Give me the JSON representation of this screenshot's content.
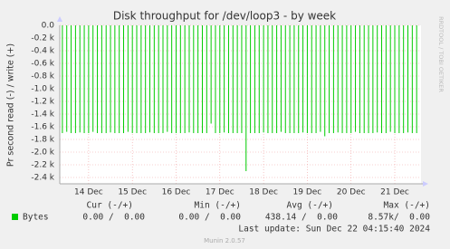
{
  "chart_data": {
    "type": "bar",
    "title": "Disk throughput for /dev/loop3 - by week",
    "y_label": "Pr second read (-) / write (+)",
    "side_label": "RRDTOOL / TOBI OETIKER",
    "x": [
      13.4,
      13.5,
      13.6,
      13.7,
      13.8,
      13.9,
      14.0,
      14.1,
      14.2,
      14.3,
      14.4,
      14.5,
      14.6,
      14.7,
      14.8,
      14.9,
      15.0,
      15.1,
      15.2,
      15.3,
      15.4,
      15.5,
      15.6,
      15.7,
      15.8,
      15.9,
      16.0,
      16.1,
      16.2,
      16.3,
      16.4,
      16.5,
      16.6,
      16.7,
      16.8,
      16.9,
      17.0,
      17.1,
      17.2,
      17.3,
      17.4,
      17.5,
      17.6,
      17.7,
      17.8,
      17.9,
      18.0,
      18.1,
      18.2,
      18.3,
      18.4,
      18.5,
      18.6,
      18.7,
      18.8,
      18.9,
      19.0,
      19.1,
      19.2,
      19.3,
      19.4,
      19.5,
      19.6,
      19.7,
      19.8,
      19.9,
      20.0,
      20.1,
      20.2,
      20.3,
      20.4,
      20.5,
      20.6,
      20.7,
      20.8,
      20.9,
      21.0,
      21.1,
      21.2,
      21.3,
      21.4,
      21.5
    ],
    "series": [
      {
        "name": "Bytes",
        "color": "#00cc00",
        "values": [
          -1700,
          -1680,
          -1700,
          -1700,
          -1690,
          -1700,
          -1700,
          -1680,
          -1700,
          -1700,
          -1700,
          -1690,
          -1700,
          -1700,
          -1700,
          -1680,
          -1700,
          -1700,
          -1700,
          -1700,
          -1690,
          -1700,
          -1700,
          -1700,
          -1680,
          -1700,
          -1700,
          -1700,
          -1700,
          -1690,
          -1700,
          -1700,
          -1700,
          -1700,
          -1550,
          -1700,
          -1700,
          -1690,
          -1700,
          -1700,
          -1700,
          -1700,
          -2300,
          -1700,
          -1700,
          -1700,
          -1690,
          -1700,
          -1700,
          -1700,
          -1680,
          -1700,
          -1700,
          -1700,
          -1700,
          -1690,
          -1700,
          -1700,
          -1700,
          -1680,
          -1750,
          -1700,
          -1700,
          -1690,
          -1700,
          -1700,
          -1700,
          -1680,
          -1700,
          -1700,
          -1700,
          -1700,
          -1690,
          -1700,
          -1700,
          -1680,
          -1700,
          -1700,
          -1700,
          -1690,
          -1700,
          -1700
        ]
      }
    ],
    "xlim": [
      13.34,
      21.6
    ],
    "xticks": [
      {
        "value": 14,
        "label": "14 Dec"
      },
      {
        "value": 15,
        "label": "15 Dec"
      },
      {
        "value": 16,
        "label": "16 Dec"
      },
      {
        "value": 17,
        "label": "17 Dec"
      },
      {
        "value": 18,
        "label": "18 Dec"
      },
      {
        "value": 19,
        "label": "19 Dec"
      },
      {
        "value": 20,
        "label": "20 Dec"
      },
      {
        "value": 21,
        "label": "21 Dec"
      }
    ],
    "ylim": [
      -2500,
      0
    ],
    "yticks": [
      {
        "value": 0,
        "label": "0.0"
      },
      {
        "value": -200,
        "label": "-0.2 k"
      },
      {
        "value": -400,
        "label": "-0.4 k"
      },
      {
        "value": -600,
        "label": "-0.6 k"
      },
      {
        "value": -800,
        "label": "-0.8 k"
      },
      {
        "value": -1000,
        "label": "-1.0 k"
      },
      {
        "value": -1200,
        "label": "-1.2 k"
      },
      {
        "value": -1400,
        "label": "-1.4 k"
      },
      {
        "value": -1600,
        "label": "-1.6 k"
      },
      {
        "value": -1800,
        "label": "-1.8 k"
      },
      {
        "value": -2000,
        "label": "-2.0 k"
      },
      {
        "value": -2200,
        "label": "-2.2 k"
      },
      {
        "value": -2400,
        "label": "-2.4 k"
      }
    ],
    "grid": true,
    "stats": {
      "headers": [
        "Cur (-/+)",
        "Min (-/+)",
        "Avg (-/+)",
        "Max (-/+)"
      ],
      "row": [
        "0.00 /  0.00",
        "0.00 /  0.00",
        "438.14 /  0.00",
        "8.57k/  0.00"
      ]
    },
    "last_update": "Last update: Sun Dec 22 04:15:40 2024",
    "footer": "Munin 2.0.57"
  }
}
